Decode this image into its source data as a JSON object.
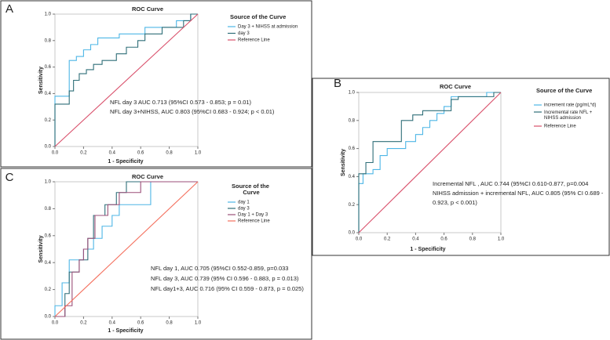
{
  "chart_data": [
    {
      "type": "line",
      "panel_label": "A",
      "title": "ROC Curve",
      "xlabel": "1 - Specificity",
      "ylabel": "Sensitivity",
      "legend_title": "Source of the Curve",
      "xlim": [
        0,
        1
      ],
      "ylim": [
        0,
        1
      ],
      "xticks": [
        {
          "value": 0,
          "label": "0.0"
        },
        0.2,
        0.4,
        0.6,
        0.8,
        {
          "value": 1,
          "label": "1.0"
        }
      ],
      "yticks": [
        {
          "value": 0,
          "label": "0.0"
        },
        0.2,
        0.4,
        0.6,
        0.8,
        {
          "value": 1,
          "label": "1.0"
        }
      ],
      "series": [
        {
          "name": "Day 3 + NIHSS at admission",
          "color": "#4db6e6",
          "x": [
            0,
            0,
            0.1,
            0.1,
            0.15,
            0.15,
            0.2,
            0.2,
            0.25,
            0.25,
            0.3,
            0.3,
            0.45,
            0.45,
            0.63,
            0.63,
            0.85,
            0.85,
            0.95,
            0.95,
            1
          ],
          "values": [
            0,
            0.38,
            0.38,
            0.65,
            0.65,
            0.68,
            0.68,
            0.73,
            0.73,
            0.77,
            0.77,
            0.82,
            0.82,
            0.85,
            0.85,
            0.9,
            0.9,
            0.95,
            0.95,
            1,
            1
          ]
        },
        {
          "name": "day 3",
          "color": "#2e6e78",
          "x": [
            0,
            0,
            0.1,
            0.1,
            0.13,
            0.13,
            0.17,
            0.17,
            0.22,
            0.22,
            0.27,
            0.27,
            0.33,
            0.33,
            0.43,
            0.43,
            0.5,
            0.5,
            0.58,
            0.58,
            0.63,
            0.63,
            0.75,
            0.75,
            0.9,
            0.9,
            0.95,
            0.95,
            1
          ],
          "values": [
            0,
            0.32,
            0.32,
            0.42,
            0.42,
            0.5,
            0.5,
            0.55,
            0.55,
            0.58,
            0.58,
            0.62,
            0.62,
            0.65,
            0.65,
            0.7,
            0.7,
            0.75,
            0.75,
            0.8,
            0.8,
            0.85,
            0.85,
            0.9,
            0.9,
            0.95,
            0.95,
            1,
            1
          ]
        },
        {
          "name": "Reference Line",
          "color": "#d9506b",
          "x": [
            0,
            1
          ],
          "values": [
            0,
            1
          ]
        }
      ],
      "annotations": [
        "NFL day 3 AUC 0.713 (95%CI 0.573 - 0.853; p = 0.01)",
        "NFL day 3+NIHSS, AUC 0.803 (95%CI 0.683 - 0.924; p < 0.01)"
      ]
    },
    {
      "type": "line",
      "panel_label": "B",
      "title": "ROC Curve",
      "xlabel": "1 - Specificity",
      "ylabel": "Sensitivity",
      "legend_title": "Source of the Curve",
      "xlim": [
        0,
        1
      ],
      "ylim": [
        0,
        1
      ],
      "xticks": [
        {
          "value": 0,
          "label": "0.0"
        },
        0.2,
        0.4,
        0.6,
        0.8,
        {
          "value": 1,
          "label": "1.0"
        }
      ],
      "yticks": [
        {
          "value": 0,
          "label": "0.0"
        },
        0.2,
        0.4,
        0.6,
        0.8,
        {
          "value": 1,
          "label": "1.0"
        }
      ],
      "series": [
        {
          "name": "increment rate (pg/mL*d)",
          "color": "#4db6e6",
          "x": [
            0,
            0,
            0.03,
            0.03,
            0.1,
            0.1,
            0.15,
            0.15,
            0.2,
            0.2,
            0.33,
            0.33,
            0.4,
            0.4,
            0.45,
            0.45,
            0.5,
            0.5,
            0.55,
            0.55,
            0.6,
            0.6,
            0.65,
            0.65,
            0.9,
            0.9,
            1
          ],
          "values": [
            0,
            0.35,
            0.35,
            0.42,
            0.42,
            0.45,
            0.45,
            0.55,
            0.55,
            0.6,
            0.6,
            0.65,
            0.65,
            0.7,
            0.7,
            0.75,
            0.75,
            0.8,
            0.8,
            0.85,
            0.85,
            0.9,
            0.9,
            0.97,
            0.97,
            1,
            1
          ]
        },
        {
          "name": "Incremental rate NFL + NIHSS admission",
          "color": "#2e6e78",
          "x": [
            0,
            0,
            0.05,
            0.05,
            0.1,
            0.1,
            0.3,
            0.3,
            0.38,
            0.38,
            0.45,
            0.45,
            0.65,
            0.65,
            0.7,
            0.7,
            0.95,
            0.95,
            1
          ],
          "values": [
            0,
            0.42,
            0.42,
            0.5,
            0.5,
            0.65,
            0.65,
            0.8,
            0.8,
            0.84,
            0.84,
            0.87,
            0.87,
            0.95,
            0.95,
            0.97,
            0.97,
            1,
            1
          ]
        },
        {
          "name": "Reference Line",
          "color": "#d9506b",
          "x": [
            0,
            1
          ],
          "values": [
            0,
            1
          ]
        }
      ],
      "annotations": [
        "Incremental NFL , AUC 0.744 (95%CI 0.610-0.877, p=0.004",
        "NIHSS admission + incremental NFL, AUC 0.805 (95% CI 0.689 -",
        "0.923, p < 0.001)"
      ]
    },
    {
      "type": "line",
      "panel_label": "C",
      "title": "ROC Curve",
      "xlabel": "1 - Specificity",
      "ylabel": "Sensitivity",
      "legend_title": "Source of the Curve",
      "xlim": [
        0,
        1
      ],
      "ylim": [
        0,
        1
      ],
      "xticks": [
        {
          "value": 0,
          "label": "0.0"
        },
        0.2,
        0.4,
        0.6,
        0.8,
        {
          "value": 1,
          "label": "1.0"
        }
      ],
      "yticks": [
        {
          "value": 0,
          "label": "0.0"
        },
        0.2,
        0.4,
        0.6,
        0.8,
        {
          "value": 1,
          "label": "1.0"
        }
      ],
      "series": [
        {
          "name": "day 1",
          "color": "#4db6e6",
          "x": [
            0,
            0,
            0.05,
            0.05,
            0.1,
            0.1,
            0.2,
            0.2,
            0.27,
            0.27,
            0.33,
            0.33,
            0.4,
            0.4,
            0.45,
            0.45,
            0.67,
            0.67,
            1
          ],
          "values": [
            0,
            0.08,
            0.08,
            0.25,
            0.25,
            0.42,
            0.42,
            0.5,
            0.5,
            0.58,
            0.58,
            0.67,
            0.67,
            0.75,
            0.75,
            0.83,
            0.83,
            1,
            1
          ]
        },
        {
          "name": "day 3",
          "color": "#2e6e78",
          "x": [
            0,
            0.07,
            0.07,
            0.1,
            0.1,
            0.17,
            0.17,
            0.23,
            0.23,
            0.27,
            0.27,
            0.35,
            0.35,
            0.43,
            0.43,
            0.5,
            0.5,
            1
          ],
          "values": [
            0,
            0,
            0.17,
            0.17,
            0.33,
            0.33,
            0.42,
            0.42,
            0.58,
            0.58,
            0.75,
            0.75,
            0.83,
            0.83,
            0.92,
            0.92,
            1,
            1
          ]
        },
        {
          "name": "Day 1 + Day 3",
          "color": "#9b4f78",
          "x": [
            0,
            0.07,
            0.07,
            0.12,
            0.12,
            0.17,
            0.17,
            0.2,
            0.2,
            0.23,
            0.23,
            0.28,
            0.28,
            0.37,
            0.37,
            0.45,
            0.45,
            0.6,
            0.6,
            1
          ],
          "values": [
            0,
            0,
            0.08,
            0.08,
            0.33,
            0.33,
            0.42,
            0.42,
            0.5,
            0.5,
            0.58,
            0.58,
            0.75,
            0.75,
            0.83,
            0.83,
            0.92,
            0.92,
            1,
            1
          ]
        },
        {
          "name": "Reference Line",
          "color": "#f4705e",
          "x": [
            0,
            1
          ],
          "values": [
            0,
            1
          ]
        }
      ],
      "annotations": [
        "NFL day 1, AUC 0.705 (95%CI 0.552-0.859, p=0.033",
        "NFL day 3, AUC 0.739 (95% CI 0.596 - 0.883, p = 0.013)",
        "NFL day1+3, AUC 0.716 (95% CI 0.559 - 0.873, p = 0.025)"
      ]
    }
  ]
}
